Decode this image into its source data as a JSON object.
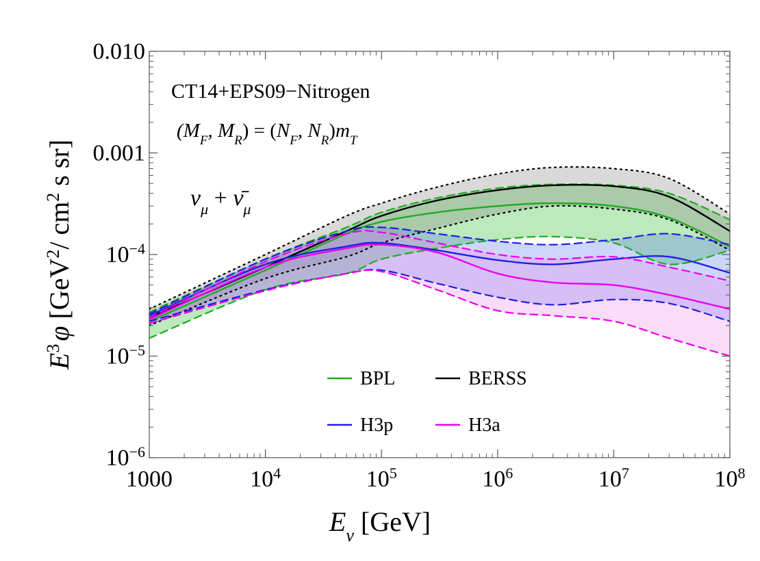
{
  "chart_data": {
    "type": "line",
    "xlabel": "E_ν [GeV]",
    "ylabel": "E³ φ [GeV² / cm² s sr]",
    "x_scale": "log",
    "y_scale": "log",
    "xlim": [
      1000,
      100000000
    ],
    "ylim": [
      1e-06,
      0.01
    ],
    "grid": false,
    "x_ticks": [
      {
        "value": 1000,
        "label": "1000"
      },
      {
        "value": 10000,
        "base": "10",
        "exp": "4"
      },
      {
        "value": 100000,
        "base": "10",
        "exp": "5"
      },
      {
        "value": 1000000,
        "base": "10",
        "exp": "6"
      },
      {
        "value": 10000000,
        "base": "10",
        "exp": "7"
      },
      {
        "value": 100000000,
        "base": "10",
        "exp": "8"
      }
    ],
    "y_ticks": [
      {
        "value": 1e-06,
        "base": "10",
        "exp": "−6"
      },
      {
        "value": 1e-05,
        "base": "10",
        "exp": "−5"
      },
      {
        "value": 0.0001,
        "base": "10",
        "exp": "−4"
      },
      {
        "value": 0.001,
        "label": "0.001"
      },
      {
        "value": 0.01,
        "label": "0.010"
      }
    ],
    "annotations": {
      "line1": "CT14+EPS09−Nitrogen",
      "line2": "(M_F, M_R) = (N_F, N_R) m_T",
      "flavor": "ν_μ + ν̄_μ"
    },
    "x": [
      1000,
      10000,
      50000,
      100000,
      300000,
      1000000,
      3000000,
      10000000,
      30000000,
      100000000
    ],
    "series": [
      {
        "name": "BPL",
        "color": "#22aa22",
        "fill": "#22bb22",
        "central": [
          2.2e-05,
          7e-05,
          0.00016,
          0.00021,
          0.00026,
          0.0003,
          0.00032,
          0.0003,
          0.00023,
          0.00012
        ],
        "upper": [
          2.7e-05,
          9e-05,
          0.000185,
          0.00026,
          0.00036,
          0.00045,
          0.00049,
          0.00048,
          0.0004,
          0.00022
        ],
        "lower": [
          1.5e-05,
          4.5e-05,
          6.5e-05,
          9e-05,
          0.000115,
          0.00014,
          0.00015,
          0.00013,
          8e-05,
          0.00011
        ]
      },
      {
        "name": "BERSS",
        "color": "#000000",
        "fill": "#808080",
        "central": [
          2.4e-05,
          7.5e-05,
          0.00017,
          0.00024,
          0.00034,
          0.00043,
          0.00048,
          0.00047,
          0.00037,
          0.00017
        ],
        "upper": [
          2.9e-05,
          0.0001,
          0.00024,
          0.00032,
          0.00046,
          0.00062,
          0.00072,
          0.0007,
          0.00056,
          0.00025
        ],
        "lower": [
          2e-05,
          5.8e-05,
          9.5e-05,
          0.00013,
          0.00018,
          0.00025,
          0.0003,
          0.00028,
          0.00022,
          0.00011
        ]
      },
      {
        "name": "H3p",
        "color": "#1f1fdd",
        "fill": "#5577ee",
        "central": [
          2.5e-05,
          8e-05,
          0.00012,
          0.00013,
          0.00011,
          8.8e-05,
          8e-05,
          9e-05,
          9.5e-05,
          6.6e-05
        ],
        "upper": [
          2.6e-05,
          9e-05,
          0.00017,
          0.000185,
          0.00016,
          0.000135,
          0.000125,
          0.00014,
          0.00016,
          0.000125
        ],
        "lower": [
          2.2e-05,
          4.5e-05,
          6.5e-05,
          7e-05,
          5.2e-05,
          3.8e-05,
          3.2e-05,
          3.6e-05,
          3.3e-05,
          2.2e-05
        ]
      },
      {
        "name": "H3a",
        "color": "#ee00ee",
        "fill": "#ee88ee",
        "central": [
          2.3e-05,
          7.5e-05,
          0.000115,
          0.000125,
          0.000105,
          6.5e-05,
          5.3e-05,
          5e-05,
          4e-05,
          2.9e-05
        ],
        "upper": [
          2.4e-05,
          8.5e-05,
          0.00016,
          0.000165,
          0.00013,
          0.0001,
          9e-05,
          9.5e-05,
          7.5e-05,
          5.5e-05
        ],
        "lower": [
          2.1e-05,
          4.4e-05,
          6.5e-05,
          6.8e-05,
          4.5e-05,
          2.8e-05,
          2.5e-05,
          2.2e-05,
          1.5e-05,
          1e-05
        ]
      }
    ],
    "legend": {
      "placement": "bottom-center",
      "rows": [
        [
          "BPL",
          "BERSS"
        ],
        [
          "H3p",
          "H3a"
        ]
      ]
    }
  }
}
